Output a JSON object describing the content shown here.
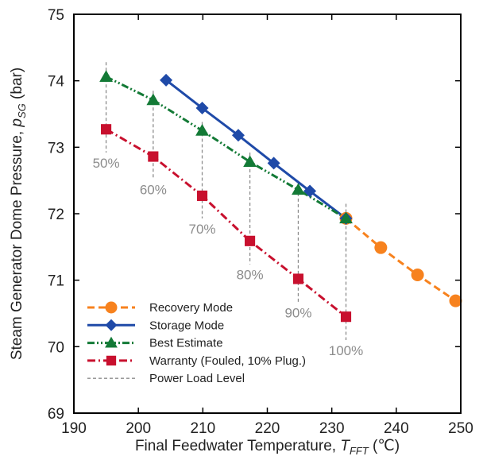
{
  "chart_data": {
    "type": "line",
    "xlabel": {
      "main": "Final Feedwater Temperature, ",
      "var": "T",
      "sub": "FFT",
      "unit": " (℃)"
    },
    "ylabel": {
      "main": "Steam Generator Dome Pressure, ",
      "var": "p",
      "sub": "SG",
      "unit": " (bar)"
    },
    "xlim": [
      190,
      250
    ],
    "ylim": [
      69,
      75
    ],
    "xticks": [
      190,
      200,
      210,
      220,
      230,
      240,
      250
    ],
    "yticks": [
      69,
      70,
      71,
      72,
      73,
      74,
      75
    ],
    "grid": false,
    "legend_position": "bottom-left",
    "series": [
      {
        "name": "Recovery Mode",
        "color": "#f7821e",
        "line": "dashed",
        "marker": "circle",
        "x": [
          232.2,
          237.6,
          243.3,
          249.2
        ],
        "y": [
          71.93,
          71.49,
          71.08,
          70.69
        ]
      },
      {
        "name": "Storage Mode",
        "color": "#1f4aa8",
        "line": "solid",
        "marker": "diamond",
        "x": [
          204.3,
          209.9,
          215.5,
          221.0,
          226.6,
          232.2
        ],
        "y": [
          74.01,
          73.59,
          73.18,
          72.76,
          72.34,
          71.93
        ]
      },
      {
        "name": "Best Estimate",
        "color": "#137a36",
        "line": "dashdotdot",
        "marker": "triangle",
        "x": [
          195.0,
          202.3,
          209.9,
          217.3,
          224.8,
          232.2
        ],
        "y": [
          74.06,
          73.71,
          73.25,
          72.78,
          72.36,
          71.93
        ]
      },
      {
        "name": "Warranty (Fouled, 10% Plug.)",
        "color": "#c8102e",
        "line": "dashdot",
        "marker": "square",
        "x": [
          195.0,
          202.3,
          209.9,
          217.3,
          224.8,
          232.2
        ],
        "y": [
          73.27,
          72.86,
          72.27,
          71.59,
          71.02,
          70.45
        ]
      }
    ],
    "power_load_levels": {
      "name": "Power Load Level",
      "color": "#8c8c8c",
      "items": [
        {
          "x": 195.0,
          "y_top": 74.28,
          "y_bottom": 72.92,
          "label": "50%"
        },
        {
          "x": 202.3,
          "y_top": 73.85,
          "y_bottom": 72.52,
          "label": "60%"
        },
        {
          "x": 209.9,
          "y_top": 73.38,
          "y_bottom": 71.93,
          "label": "70%"
        },
        {
          "x": 217.3,
          "y_top": 72.92,
          "y_bottom": 71.24,
          "label": "80%"
        },
        {
          "x": 224.8,
          "y_top": 72.48,
          "y_bottom": 70.67,
          "label": "90%"
        },
        {
          "x": 232.2,
          "y_top": 72.15,
          "y_bottom": 70.1,
          "label": "100%"
        }
      ]
    }
  }
}
